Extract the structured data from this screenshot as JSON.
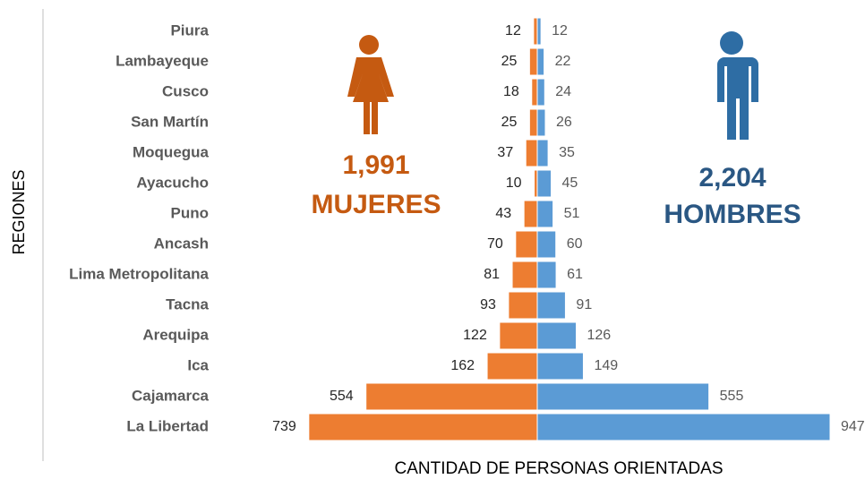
{
  "chart_data": {
    "type": "diverging-bar",
    "y_label": "REGIONES",
    "x_label": "CANTIDAD DE PERSONAS ORIENTADAS",
    "categories": [
      "Piura",
      "Lambayeque",
      "Cusco",
      "San Martín",
      "Moquegua",
      "Ayacucho",
      "Puno",
      "Ancash",
      "Lima Metropolitana",
      "Tacna",
      "Arequipa",
      "Ica",
      "Cajamarca",
      "La Libertad"
    ],
    "series": [
      {
        "name": "MUJERES",
        "color": "#ed7d31",
        "text_color": "#c55a11",
        "side": "left",
        "total": {
          "value": 1991,
          "label": "1,991"
        },
        "values": [
          12,
          25,
          18,
          25,
          37,
          10,
          43,
          70,
          81,
          93,
          122,
          162,
          554,
          739
        ]
      },
      {
        "name": "HOMBRES",
        "color": "#5b9bd5",
        "text_color": "#2a5783",
        "side": "right",
        "total": {
          "value": 2204,
          "label": "2,204"
        },
        "values": [
          12,
          22,
          24,
          26,
          35,
          45,
          51,
          60,
          61,
          91,
          126,
          149,
          555,
          947
        ]
      }
    ]
  }
}
